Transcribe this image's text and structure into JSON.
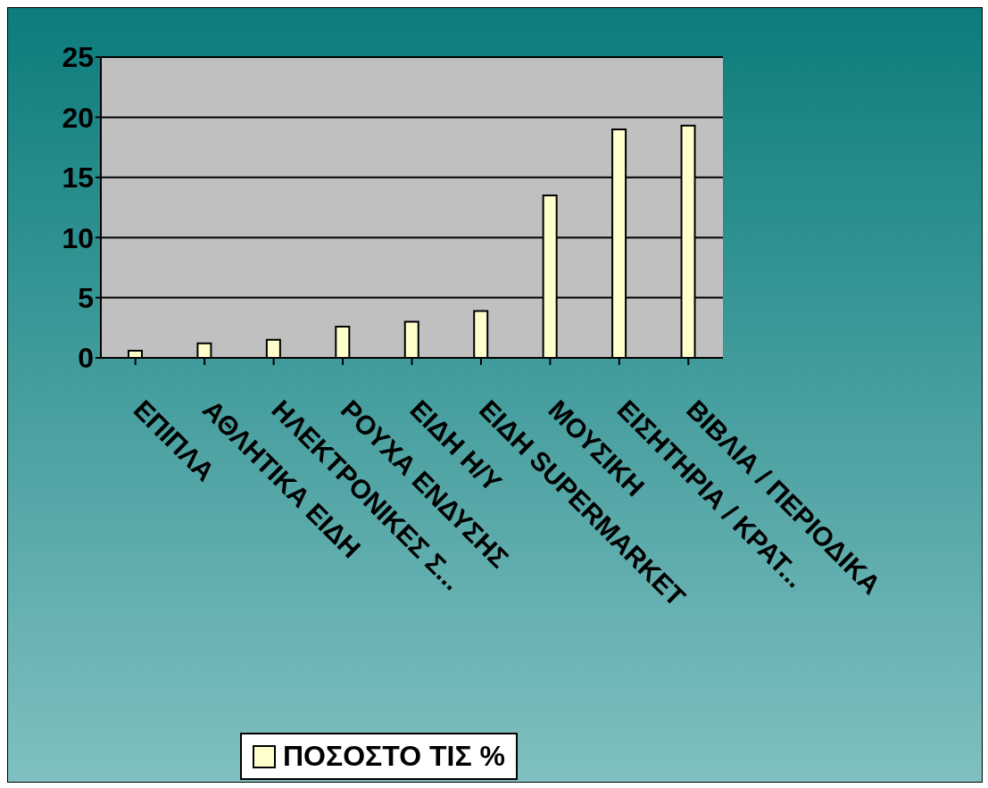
{
  "chart_data": {
    "type": "bar",
    "categories": [
      "ΕΠΙΠΛΑ",
      "ΑΘΛΗΤΙΚΑ ΕΙΔΗ",
      "ΗΛΕΚΤΡΟΝΙΚΕΣ Σ...",
      "ΡΟΥΧΑ ΕΝΔΥΣΗΣ",
      "ΕΙΔΗ Η/Υ",
      "ΕΙΔΗ SUPERMARKET",
      "ΜΟΥΣΙΚΗ",
      "ΕΙΣΗΤΗΡΙΑ / ΚΡΑΤ...",
      "ΒΙΒΛΙΑ / ΠΕΡΙΟΔΙΚΑ"
    ],
    "series": [
      {
        "name": "ΠΟΣΟΣΤΟ ΤΙΣ %",
        "color": "#ffffcc",
        "values": [
          0.6,
          1.2,
          1.5,
          2.6,
          3.0,
          3.9,
          13.5,
          19.0,
          19.3
        ]
      }
    ],
    "ylim": [
      0,
      25
    ],
    "yticks": [
      0,
      5,
      10,
      15,
      20,
      25
    ],
    "grid": "y",
    "legend": "bottom"
  }
}
